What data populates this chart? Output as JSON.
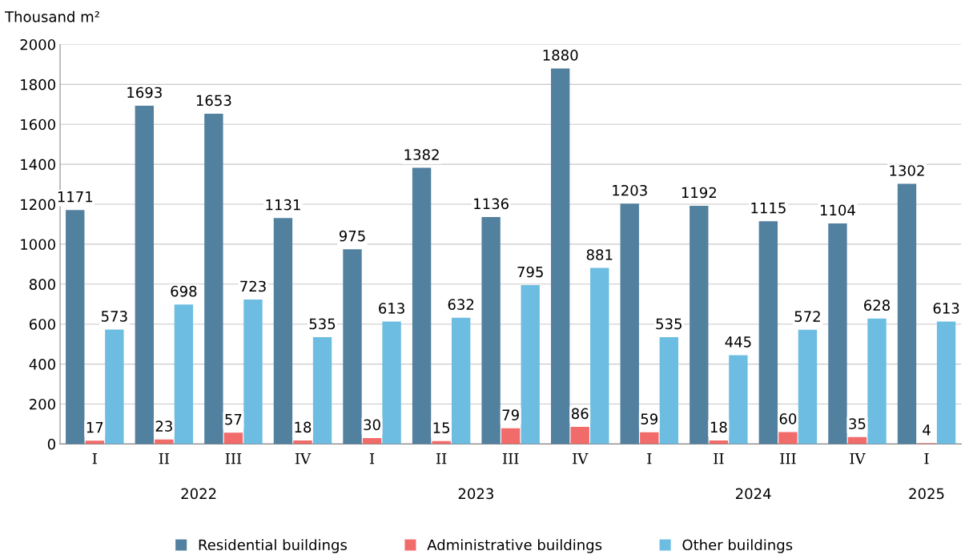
{
  "chart_data": {
    "type": "bar",
    "ylabel": "Thousand m²",
    "categories": [
      "I",
      "II",
      "III",
      "IV",
      "I",
      "II",
      "III",
      "IV",
      "I",
      "II",
      "III",
      "IV",
      "I"
    ],
    "series": [
      {
        "name": "Residential buildings",
        "color": "#52809f",
        "values": [
          1171,
          1693,
          1653,
          1131,
          975,
          1382,
          1136,
          1880,
          1203,
          1192,
          1115,
          1104,
          1302
        ]
      },
      {
        "name": "Administrative buildings",
        "color": "#f26b6b",
        "values": [
          17,
          23,
          57,
          18,
          30,
          15,
          79,
          86,
          59,
          18,
          60,
          35,
          4
        ]
      },
      {
        "name": "Other buildings",
        "color": "#6cbde1",
        "values": [
          573,
          698,
          723,
          535,
          613,
          632,
          795,
          881,
          535,
          445,
          572,
          628,
          613
        ]
      }
    ],
    "annotations": [
      "2022",
      "2023",
      "2024",
      "2025"
    ],
    "ylim": [
      0,
      2000
    ],
    "yticks": [
      0,
      200,
      400,
      600,
      800,
      1000,
      1200,
      1400,
      1600,
      1800,
      2000
    ],
    "grid": "y",
    "legend": "bottom",
    "data_labels": true
  }
}
